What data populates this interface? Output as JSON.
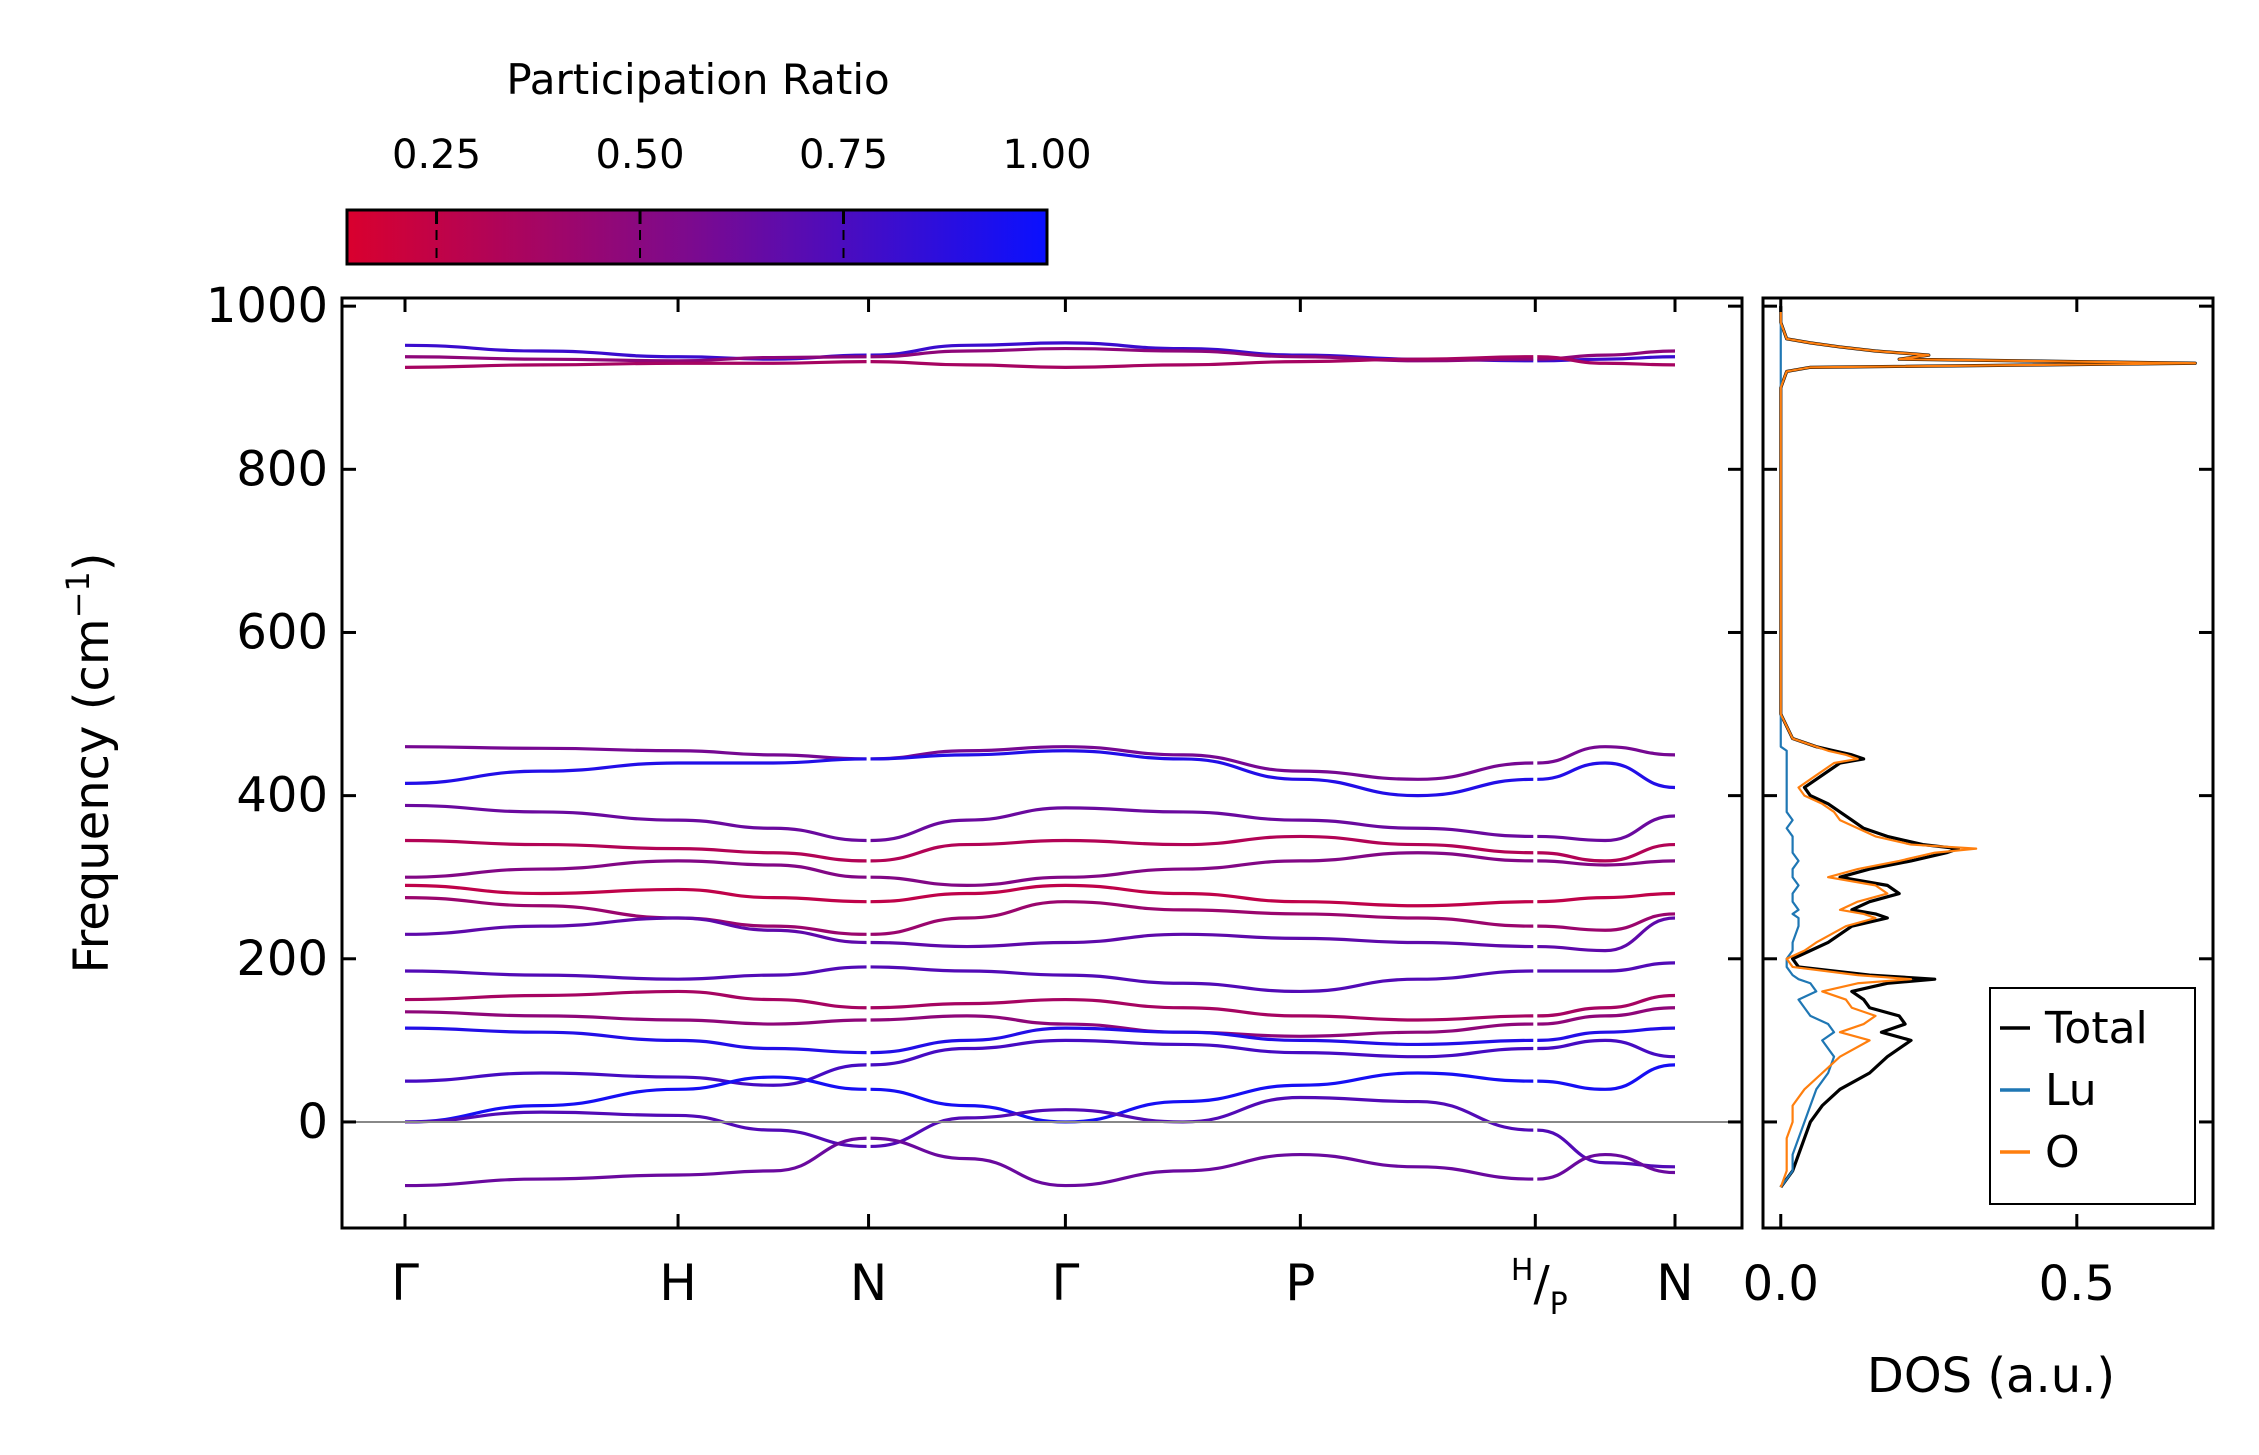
{
  "chart_data": [
    {
      "type": "line",
      "name": "phonon-dispersion",
      "ylabel": "Frequency (cm",
      "ylabel_sup": "−1",
      "ylabel_end": ")",
      "ylim": [
        -130,
        1010
      ],
      "yticks": [
        0,
        200,
        400,
        600,
        800,
        1000
      ],
      "ytick_labels": [
        "0",
        "200",
        "400",
        "600",
        "800",
        "1000"
      ],
      "path_positions": [
        0,
        0.215,
        0.365,
        0.52,
        0.705,
        0.89,
        1.0
      ],
      "kpoint_labels": [
        "Γ",
        "H",
        "N",
        "Γ",
        "P",
        "H/P",
        "N"
      ],
      "segment_breaks": [
        2,
        5
      ],
      "zero_line": 0,
      "color_low": "#d9002e",
      "color_high": "#0a10ff",
      "branches": [
        {
          "vals": [
            952,
            945,
            938,
            935,
            940,
            952,
            955,
            948,
            940,
            935,
            933,
            935,
            938
          ],
          "pr": 0.8
        },
        {
          "vals": [
            938,
            935,
            933,
            937,
            938,
            945,
            948,
            945,
            938,
            933,
            935,
            940,
            945
          ],
          "pr": 0.45
        },
        {
          "vals": [
            925,
            928,
            930,
            930,
            932,
            928,
            925,
            928,
            932,
            935,
            938,
            930,
            928
          ],
          "pr": 0.35
        },
        {
          "vals": [
            460,
            458,
            455,
            450,
            445,
            455,
            460,
            450,
            430,
            420,
            440,
            460,
            450
          ],
          "pr": 0.55
        },
        {
          "vals": [
            415,
            430,
            440,
            440,
            445,
            450,
            455,
            445,
            420,
            400,
            420,
            440,
            410
          ],
          "pr": 0.9
        },
        {
          "vals": [
            388,
            380,
            370,
            360,
            345,
            370,
            385,
            380,
            370,
            360,
            350,
            345,
            375
          ],
          "pr": 0.6
        },
        {
          "vals": [
            345,
            340,
            335,
            330,
            320,
            340,
            345,
            340,
            350,
            340,
            330,
            320,
            340
          ],
          "pr": 0.3
        },
        {
          "vals": [
            300,
            310,
            320,
            315,
            300,
            290,
            300,
            310,
            320,
            330,
            320,
            315,
            320
          ],
          "pr": 0.5
        },
        {
          "vals": [
            290,
            280,
            285,
            275,
            270,
            280,
            290,
            280,
            270,
            265,
            270,
            275,
            280
          ],
          "pr": 0.25
        },
        {
          "vals": [
            275,
            265,
            250,
            240,
            230,
            250,
            270,
            260,
            255,
            250,
            240,
            235,
            255
          ],
          "pr": 0.4
        },
        {
          "vals": [
            230,
            240,
            250,
            235,
            220,
            215,
            220,
            230,
            225,
            220,
            215,
            210,
            250
          ],
          "pr": 0.65
        },
        {
          "vals": [
            185,
            180,
            175,
            180,
            190,
            185,
            180,
            170,
            160,
            175,
            185,
            185,
            195
          ],
          "pr": 0.7
        },
        {
          "vals": [
            150,
            155,
            160,
            150,
            140,
            145,
            150,
            140,
            130,
            125,
            130,
            140,
            155
          ],
          "pr": 0.35
        },
        {
          "vals": [
            135,
            130,
            125,
            120,
            125,
            130,
            120,
            110,
            105,
            110,
            120,
            130,
            140
          ],
          "pr": 0.45
        },
        {
          "vals": [
            115,
            110,
            100,
            90,
            85,
            100,
            115,
            110,
            100,
            95,
            100,
            110,
            115
          ],
          "pr": 0.9
        },
        {
          "vals": [
            50,
            60,
            55,
            45,
            70,
            90,
            100,
            95,
            85,
            80,
            90,
            100,
            80
          ],
          "pr": 0.75
        },
        {
          "vals": [
            0,
            20,
            40,
            55,
            40,
            20,
            0,
            25,
            45,
            60,
            50,
            40,
            70
          ],
          "pr": 0.95
        },
        {
          "vals": [
            0,
            12,
            8,
            -10,
            -30,
            5,
            15,
            0,
            30,
            25,
            -10,
            -50,
            -55
          ],
          "pr": 0.7
        },
        {
          "vals": [
            -78,
            -70,
            -65,
            -60,
            -20,
            -45,
            -78,
            -60,
            -40,
            -55,
            -70,
            -40,
            -62
          ],
          "pr": 0.6
        }
      ]
    },
    {
      "type": "line",
      "name": "density-of-states",
      "xlabel": "DOS (a.u.)",
      "xlim": [
        -0.03,
        0.73
      ],
      "ylim": [
        -130,
        1010
      ],
      "xticks": [
        0.0,
        0.5
      ],
      "xtick_labels": [
        "0.0",
        "0.5"
      ],
      "freq": [
        -80,
        -60,
        -40,
        -20,
        0,
        20,
        40,
        60,
        80,
        100,
        110,
        120,
        130,
        140,
        150,
        160,
        170,
        175,
        180,
        190,
        200,
        210,
        220,
        240,
        250,
        255,
        260,
        270,
        280,
        290,
        300,
        310,
        320,
        330,
        335,
        340,
        350,
        360,
        370,
        380,
        390,
        400,
        410,
        420,
        440,
        445,
        450,
        455,
        460,
        470,
        500,
        600,
        700,
        800,
        900,
        920,
        925,
        930,
        935,
        940,
        945,
        950,
        955,
        960,
        980,
        1000
      ],
      "series": [
        {
          "name": "Total",
          "color": "#000000",
          "width": 3.2,
          "values": [
            0.0,
            0.02,
            0.03,
            0.04,
            0.05,
            0.07,
            0.1,
            0.15,
            0.18,
            0.22,
            0.17,
            0.21,
            0.2,
            0.15,
            0.14,
            0.12,
            0.18,
            0.26,
            0.15,
            0.03,
            0.02,
            0.05,
            0.08,
            0.12,
            0.18,
            0.16,
            0.12,
            0.15,
            0.2,
            0.18,
            0.1,
            0.15,
            0.22,
            0.28,
            0.3,
            0.24,
            0.18,
            0.14,
            0.12,
            0.1,
            0.08,
            0.05,
            0.04,
            0.06,
            0.1,
            0.14,
            0.12,
            0.09,
            0.06,
            0.02,
            0.0,
            0.0,
            0.0,
            0.0,
            0.0,
            0.01,
            0.05,
            0.7,
            0.2,
            0.25,
            0.16,
            0.1,
            0.05,
            0.01,
            0.0,
            0.0
          ]
        },
        {
          "name": "Lu",
          "color": "#1f77b4",
          "width": 2.2,
          "values": [
            0.0,
            0.02,
            0.02,
            0.03,
            0.04,
            0.05,
            0.06,
            0.08,
            0.09,
            0.07,
            0.09,
            0.08,
            0.05,
            0.04,
            0.03,
            0.06,
            0.05,
            0.03,
            0.02,
            0.01,
            0.01,
            0.02,
            0.02,
            0.03,
            0.03,
            0.02,
            0.03,
            0.02,
            0.02,
            0.03,
            0.02,
            0.02,
            0.03,
            0.02,
            0.02,
            0.02,
            0.02,
            0.01,
            0.02,
            0.01,
            0.01,
            0.01,
            0.01,
            0.01,
            0.01,
            0.01,
            0.01,
            0.01,
            0.0,
            0.0,
            0.0,
            0.0,
            0.0,
            0.0,
            0.0,
            0.0,
            0.0,
            0.0,
            0.0,
            0.0,
            0.0,
            0.0,
            0.0,
            0.0,
            0.0,
            0.0
          ]
        },
        {
          "name": "O",
          "color": "#ff7f0e",
          "width": 2.2,
          "values": [
            0.0,
            0.01,
            0.01,
            0.01,
            0.02,
            0.02,
            0.04,
            0.07,
            0.1,
            0.15,
            0.1,
            0.14,
            0.16,
            0.12,
            0.11,
            0.07,
            0.13,
            0.22,
            0.13,
            0.02,
            0.01,
            0.04,
            0.06,
            0.11,
            0.16,
            0.14,
            0.1,
            0.13,
            0.18,
            0.16,
            0.08,
            0.13,
            0.2,
            0.26,
            0.33,
            0.22,
            0.16,
            0.13,
            0.1,
            0.09,
            0.07,
            0.04,
            0.03,
            0.05,
            0.09,
            0.13,
            0.11,
            0.08,
            0.06,
            0.02,
            0.0,
            0.0,
            0.0,
            0.0,
            0.0,
            0.01,
            0.05,
            0.7,
            0.2,
            0.25,
            0.16,
            0.1,
            0.05,
            0.01,
            0.0,
            0.0
          ]
        }
      ],
      "legend": [
        "Total",
        "Lu",
        "O"
      ],
      "legend_position": "lower-right"
    }
  ],
  "colorbar": {
    "title": "Participation Ratio",
    "range": [
      0.14,
      1.0
    ],
    "ticks": [
      0.25,
      0.5,
      0.75,
      1.0
    ],
    "tick_labels": [
      "0.25",
      "0.50",
      "0.75",
      "1.00"
    ]
  }
}
